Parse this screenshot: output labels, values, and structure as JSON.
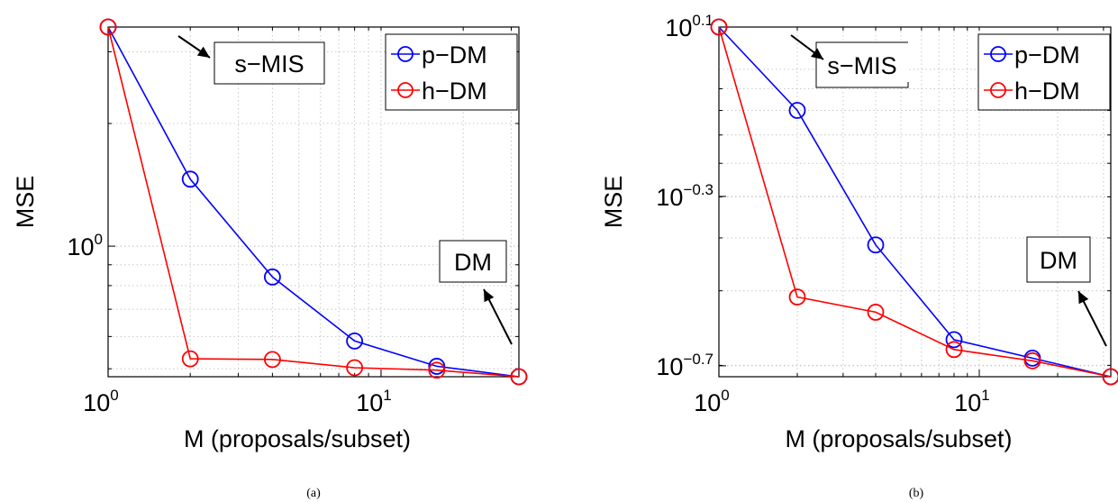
{
  "chart_data": [
    {
      "panel": "a",
      "type": "line",
      "caption": "(a)",
      "xlabel": "M (proposals/subset)",
      "ylabel": "MSE",
      "xscale": "log",
      "yscale": "log",
      "xlim": [
        1,
        32
      ],
      "ylim": [
        0.478,
        3.45
      ],
      "grid": true,
      "legend": "top-right",
      "xticks": [
        {
          "base": "10",
          "exp": "0",
          "value": 1
        },
        {
          "base": "10",
          "exp": "1",
          "value": 10
        }
      ],
      "yticks": [
        {
          "base": "10",
          "exp": "0",
          "value": 1
        }
      ],
      "series": [
        {
          "name": "p−DM",
          "color": "#0000ff",
          "x": [
            1,
            2,
            4,
            8,
            16,
            32
          ],
          "y": [
            3.45,
            1.46,
            0.84,
            0.585,
            0.507,
            0.478
          ]
        },
        {
          "name": "h−DM",
          "color": "#ff0000",
          "x": [
            1,
            2,
            4,
            8,
            16,
            32
          ],
          "y": [
            3.45,
            0.529,
            0.527,
            0.503,
            0.496,
            0.478
          ]
        }
      ],
      "annotations": [
        {
          "text": "s−MIS",
          "arrow": "toward-left-start"
        },
        {
          "text": "DM",
          "arrow": "toward-right-end"
        }
      ]
    },
    {
      "panel": "b",
      "type": "line",
      "caption": "(b)",
      "xlabel": "M (proposals/subset)",
      "ylabel": "MSE",
      "xscale": "log",
      "yscale": "log",
      "xlim": [
        1,
        32
      ],
      "ylim": [
        0.188,
        1.259
      ],
      "grid": true,
      "legend": "top-right",
      "xticks": [
        {
          "base": "10",
          "exp": "0",
          "value": 1
        },
        {
          "base": "10",
          "exp": "1",
          "value": 10
        }
      ],
      "yticks": [
        {
          "base": "10",
          "exp": "0.1",
          "value": 1.2589
        },
        {
          "base": "10",
          "exp": "−0.3",
          "value": 0.5012
        },
        {
          "base": "10",
          "exp": "−0.7",
          "value": 0.1995
        }
      ],
      "series": [
        {
          "name": "p−DM",
          "color": "#0000ff",
          "x": [
            1,
            2,
            4,
            8,
            16,
            32
          ],
          "y": [
            1.259,
            0.8,
            0.385,
            0.23,
            0.208,
            0.188
          ]
        },
        {
          "name": "h−DM",
          "color": "#ff0000",
          "x": [
            1,
            2,
            4,
            8,
            16,
            32
          ],
          "y": [
            1.259,
            0.29,
            0.267,
            0.218,
            0.205,
            0.188
          ]
        }
      ],
      "annotations": [
        {
          "text": "s−MIS",
          "arrow": "toward-left-start"
        },
        {
          "text": "DM",
          "arrow": "toward-right-end"
        }
      ]
    }
  ]
}
